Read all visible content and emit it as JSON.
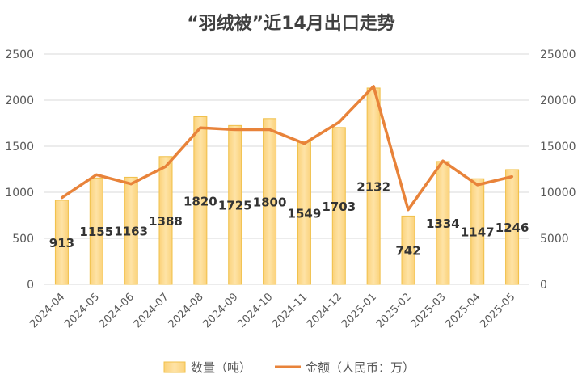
{
  "chart_data": {
    "type": "bar",
    "title": "“羽绒被”近14月出口走势",
    "categories": [
      "2024-04",
      "2024-05",
      "2024-06",
      "2024-07",
      "2024-08",
      "2024-09",
      "2024-10",
      "2024-11",
      "2024-12",
      "2025-01",
      "2025-02",
      "2025-03",
      "2025-04",
      "2025-05"
    ],
    "series": [
      {
        "name": "数量（吨）",
        "type": "bar",
        "axis": "left",
        "values": [
          913,
          1155,
          1163,
          1388,
          1820,
          1725,
          1800,
          1549,
          1703,
          2132,
          742,
          1334,
          1147,
          1246
        ]
      },
      {
        "name": "金额（人民币：万）",
        "type": "line",
        "axis": "right",
        "values": [
          9400,
          11900,
          10900,
          12800,
          17000,
          16800,
          16800,
          15300,
          17600,
          21500,
          8100,
          13400,
          10800,
          11700
        ]
      }
    ],
    "yleft": {
      "lim": [
        0,
        2500
      ],
      "ticks": [
        "0",
        "500",
        "1000",
        "1500",
        "2000",
        "2500"
      ]
    },
    "yright": {
      "lim": [
        0,
        25000
      ],
      "ticks": [
        "0",
        "5000",
        "10000",
        "15000",
        "20000",
        "25000"
      ]
    },
    "grid": true,
    "legend": "bottom",
    "colors": {
      "bar_fill": "#FDD98C",
      "bar_stroke": "#F0C04A",
      "line": "#E8833A",
      "grid": "#D9D9D9",
      "label": "#333333",
      "axis_text": "#595959"
    }
  }
}
